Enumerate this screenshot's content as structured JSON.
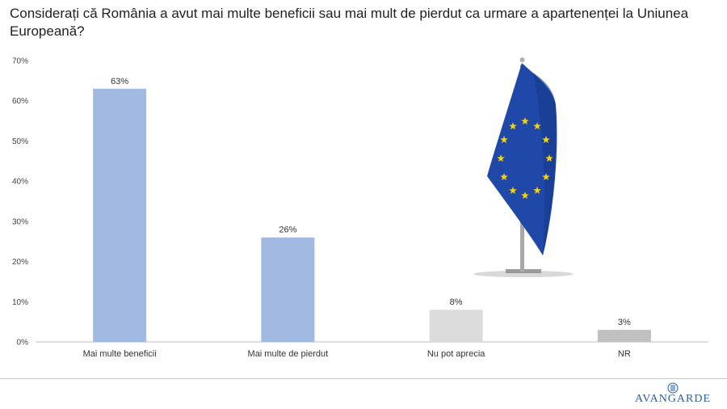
{
  "header": {
    "title": "Considerați că România a avut mai multe beneficii sau mai mult de pierdut ca urmare a apartenenței la Uniunea Europeană?"
  },
  "chart_data": {
    "type": "bar",
    "categories": [
      "Mai multe beneficii",
      "Mai multe de pierdut",
      "Nu pot aprecia",
      "NR"
    ],
    "values": [
      63,
      26,
      8,
      3
    ],
    "data_labels": [
      "63%",
      "26%",
      "8%",
      "3%"
    ],
    "ylim": [
      0,
      70
    ],
    "yticks": [
      0,
      10,
      20,
      30,
      40,
      50,
      60,
      70
    ],
    "ytick_labels": [
      "0%",
      "10%",
      "20%",
      "30%",
      "40%",
      "50%",
      "60%",
      "70%"
    ],
    "colors": [
      "#a2b9e2",
      "#a2b9e2",
      "#dcdcdc",
      "#c0c0c0"
    ],
    "grid": false
  },
  "illustration": {
    "icon": "eu-flag-icon",
    "flag_color": "#1f48a8",
    "star_color": "#f5d10a"
  },
  "footer": {
    "brand": "AVANGARDE",
    "brand_color": "#2a5fa8"
  }
}
